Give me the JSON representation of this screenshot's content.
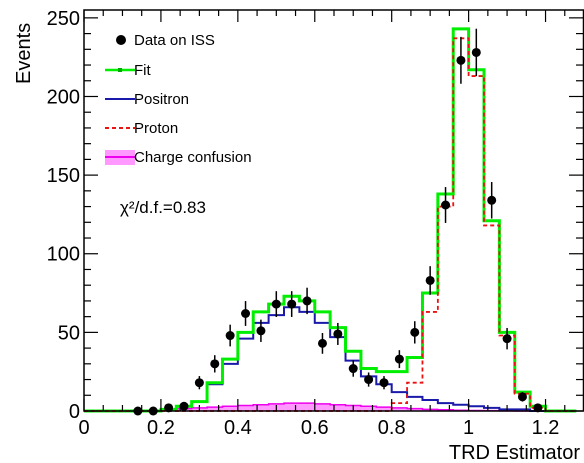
{
  "chart_data": {
    "type": "histogram",
    "xlabel": "TRD Estimator",
    "ylabel": "Events",
    "xlim": [
      0,
      1.3
    ],
    "ylim": [
      0,
      255
    ],
    "xticks": [
      0,
      0.2,
      0.4,
      0.6,
      0.8,
      1,
      1.2
    ],
    "xtick_labels": [
      "0",
      "0.2",
      "0.4",
      "0.6",
      "0.8",
      "1",
      "1.2"
    ],
    "yticks": [
      0,
      50,
      100,
      150,
      200,
      250
    ],
    "ytick_labels": [
      "0",
      "50",
      "100",
      "150",
      "200",
      "250"
    ],
    "bin_edges": [
      0,
      0.04,
      0.08,
      0.12,
      0.16,
      0.2,
      0.24,
      0.28,
      0.32,
      0.36,
      0.4,
      0.44,
      0.48,
      0.52,
      0.56,
      0.6,
      0.64,
      0.68,
      0.72,
      0.76,
      0.8,
      0.84,
      0.88,
      0.92,
      0.96,
      1.0,
      1.04,
      1.08,
      1.12,
      1.16,
      1.2,
      1.24,
      1.28
    ],
    "series": [
      {
        "name": "Data on ISS",
        "style": "points",
        "color": "#000000",
        "x": [
          0.14,
          0.18,
          0.22,
          0.26,
          0.3,
          0.34,
          0.38,
          0.42,
          0.46,
          0.5,
          0.54,
          0.58,
          0.62,
          0.66,
          0.7,
          0.74,
          0.78,
          0.82,
          0.86,
          0.9,
          0.94,
          0.98,
          1.02,
          1.06,
          1.1,
          1.14,
          1.18
        ],
        "y": [
          0,
          0,
          2,
          3,
          18,
          30,
          48,
          62,
          51,
          68,
          68,
          70,
          43,
          49,
          27,
          20,
          18,
          33,
          50,
          83,
          131,
          223,
          228,
          134,
          46,
          9,
          2
        ],
        "err": [
          0,
          0,
          1.4,
          1.7,
          4.2,
          5.5,
          6.9,
          7.9,
          7.1,
          8.2,
          8.2,
          8.4,
          6.6,
          7.0,
          5.2,
          4.5,
          4.2,
          5.7,
          7.1,
          9.1,
          11.4,
          14.9,
          15.1,
          11.6,
          6.8,
          3.0,
          1.4
        ]
      },
      {
        "name": "Fit",
        "style": "step",
        "color": "#00ee00",
        "values": [
          0,
          0,
          0,
          0,
          0,
          1,
          3,
          6,
          18,
          33,
          50,
          63,
          68,
          73,
          70,
          63,
          53,
          38,
          27,
          25,
          25,
          34,
          75,
          138,
          243,
          217,
          121,
          50,
          12,
          3,
          0,
          0
        ]
      },
      {
        "name": "Positron",
        "style": "step",
        "color": "#1a1aaa",
        "values": [
          0,
          0,
          0,
          0,
          0,
          1,
          3,
          6,
          17,
          30,
          46,
          56,
          61,
          66,
          63,
          56,
          47,
          32,
          22,
          17,
          12,
          9,
          7,
          5,
          4,
          3,
          2,
          1,
          1,
          0,
          0,
          0
        ]
      },
      {
        "name": "Proton",
        "style": "step-dashed",
        "color": "#ee1111",
        "values": [
          0,
          0,
          0,
          0,
          0,
          0,
          0,
          0,
          0,
          0,
          0,
          0,
          0,
          0,
          0,
          0,
          0,
          0,
          0,
          0,
          5,
          18,
          63,
          130,
          237,
          213,
          118,
          48,
          11,
          2,
          0,
          0
        ]
      },
      {
        "name": "Charge confusion",
        "style": "filled-area",
        "color": "#ee00ee",
        "fill": "#ff99ff",
        "values": [
          0,
          0,
          0,
          0,
          0.5,
          1,
          1.5,
          2,
          2.5,
          3,
          3.5,
          4,
          4.5,
          5,
          5,
          4.5,
          4,
          3.5,
          3,
          2.5,
          2,
          1.5,
          1,
          0.8,
          0.5,
          0.3,
          0.2,
          0.1,
          0,
          0,
          0,
          0
        ]
      }
    ],
    "annotation": "χ²/d.f.=0.83",
    "legend": {
      "placement": "top-left",
      "items": [
        "Data on ISS",
        "Fit",
        "Positron",
        "Proton",
        "Charge confusion"
      ]
    },
    "grid": false
  }
}
